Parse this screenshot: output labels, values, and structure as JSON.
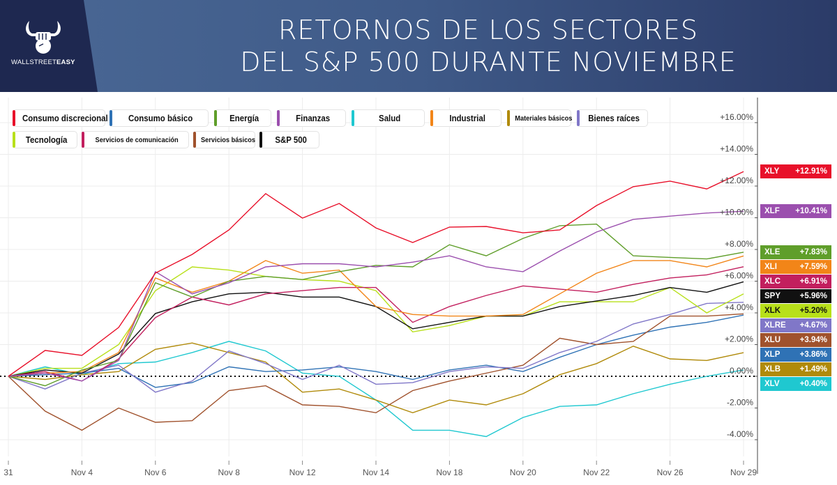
{
  "header": {
    "title_line1": "RETORNOS DE LOS SECTORES",
    "title_line2": "DEL S&P 500 DURANTE NOVIEMBRE",
    "logo_text_light": "WALLSTREET",
    "logo_text_bold": "EASY"
  },
  "legend": [
    {
      "label": "Consumo discrecional",
      "ticker": "XLY"
    },
    {
      "label": "Consumo básico",
      "ticker": "XLP"
    },
    {
      "label": "Energía",
      "ticker": "XLE"
    },
    {
      "label": "Finanzas",
      "ticker": "XLF"
    },
    {
      "label": "Salud",
      "ticker": "XLV"
    },
    {
      "label": "Industrial",
      "ticker": "XLI"
    },
    {
      "label": "Materiales básicos",
      "ticker": "XLB"
    },
    {
      "label": "Bienes raíces",
      "ticker": "XLRE"
    },
    {
      "label": "Tecnología",
      "ticker": "XLK"
    },
    {
      "label": "Servicios de comunicación",
      "ticker": "XLC"
    },
    {
      "label": "Servicios básicos",
      "ticker": "XLU"
    },
    {
      "label": "S&P 500",
      "ticker": "SPY"
    }
  ],
  "chart_data": {
    "type": "line",
    "x": [
      "31",
      "Nov 1",
      "Nov 4",
      "Nov 5",
      "Nov 6",
      "Nov 7",
      "Nov 8",
      "Nov 11",
      "Nov 12",
      "Nov 13",
      "Nov 14",
      "Nov 15",
      "Nov 18",
      "Nov 19",
      "Nov 20",
      "Nov 21",
      "Nov 22",
      "Nov 25",
      "Nov 26",
      "Nov 27",
      "Nov 29"
    ],
    "x_tick_labels": [
      "31",
      "Nov 4",
      "Nov 6",
      "Nov 8",
      "Nov 12",
      "Nov 14",
      "Nov 18",
      "Nov 20",
      "Nov 22",
      "Nov 26",
      "Nov 29"
    ],
    "y_tick_labels": [
      "-4.00%",
      "-2.00%",
      "0.00%",
      "+2.00%",
      "+4.00%",
      "+6.00%",
      "+8.00%",
      "+10.00%",
      "+12.00%",
      "+14.00%",
      "+16.00%"
    ],
    "y_ticks": [
      -4,
      -2,
      0,
      2,
      4,
      6,
      8,
      10,
      12,
      14,
      16
    ],
    "ylim": [
      -4.8,
      17
    ],
    "grid": true,
    "legend_position": "top-left",
    "zero_line": "dotted",
    "series": [
      {
        "ticker": "XLY",
        "name": "Consumo discrecional",
        "color": "#e8102a",
        "final": "+12.91%",
        "values": [
          0,
          1.63,
          1.32,
          3.08,
          6.51,
          7.69,
          9.23,
          11.52,
          9.98,
          10.9,
          9.36,
          8.44,
          9.41,
          9.45,
          9.05,
          9.23,
          10.77,
          11.96,
          12.31,
          11.82,
          12.91
        ]
      },
      {
        "ticker": "XLF",
        "name": "Finanzas",
        "color": "#9b4fae",
        "final": "+10.41%",
        "values": [
          0,
          0.2,
          -0.3,
          1.0,
          6.6,
          5.2,
          5.9,
          6.9,
          7.1,
          7.1,
          6.9,
          7.2,
          7.6,
          6.9,
          6.6,
          7.9,
          9.1,
          9.9,
          10.1,
          10.3,
          10.41
        ]
      },
      {
        "ticker": "XLE",
        "name": "Energía",
        "color": "#5f9e2a",
        "final": "+7.83%",
        "values": [
          0,
          -0.6,
          0.4,
          1.0,
          5.9,
          5.0,
          6.0,
          6.3,
          6.1,
          6.6,
          7.0,
          6.9,
          8.3,
          7.6,
          8.7,
          9.5,
          9.6,
          7.6,
          7.5,
          7.4,
          7.83
        ]
      },
      {
        "ticker": "XLI",
        "name": "Industrial",
        "color": "#f28518",
        "final": "+7.59%",
        "values": [
          0,
          0.2,
          0.3,
          1.5,
          6.2,
          5.3,
          6.0,
          7.3,
          6.5,
          6.7,
          4.4,
          3.9,
          3.8,
          3.8,
          3.9,
          5.2,
          6.5,
          7.3,
          7.3,
          6.9,
          7.59
        ]
      },
      {
        "ticker": "XLC",
        "name": "Servicios de comunicación",
        "color": "#c21f5e",
        "final": "+6.91%",
        "values": [
          0,
          0.3,
          -0.3,
          1.1,
          3.7,
          5.0,
          4.5,
          5.2,
          5.4,
          5.6,
          5.6,
          3.4,
          4.4,
          5.1,
          5.7,
          5.5,
          5.3,
          5.8,
          6.2,
          6.4,
          6.91
        ]
      },
      {
        "ticker": "SPY",
        "name": "S&P 500",
        "color": "#111111",
        "final": "+5.96%",
        "values": [
          0,
          0.4,
          0.2,
          1.4,
          3.96,
          4.7,
          5.2,
          5.3,
          5.0,
          5.0,
          4.4,
          3.0,
          3.4,
          3.8,
          3.8,
          4.4,
          4.75,
          5.1,
          5.6,
          5.3,
          5.96
        ]
      },
      {
        "ticker": "XLK",
        "name": "Tecnología",
        "color": "#b8e01a",
        "final": "+5.20%",
        "values": [
          0,
          0.5,
          0.5,
          2.0,
          5.4,
          6.9,
          6.7,
          6.3,
          6.1,
          6.0,
          5.4,
          2.8,
          3.2,
          3.8,
          3.8,
          4.7,
          4.7,
          4.7,
          5.6,
          4.0,
          5.2
        ]
      },
      {
        "ticker": "XLRE",
        "name": "Bienes raíces",
        "color": "#8077c8",
        "final": "+4.67%",
        "values": [
          0,
          -0.8,
          0.2,
          0.7,
          -1.0,
          -0.3,
          1.6,
          0.8,
          -0.2,
          0.7,
          -0.5,
          -0.4,
          0.3,
          0.6,
          0.5,
          1.5,
          2.2,
          3.3,
          3.9,
          4.6,
          4.67
        ]
      },
      {
        "ticker": "XLU",
        "name": "Servicios básicos",
        "color": "#a0522d",
        "final": "+3.94%",
        "values": [
          0,
          -2.2,
          -3.4,
          -2.0,
          -2.9,
          -2.8,
          -0.9,
          -0.6,
          -1.8,
          -1.9,
          -2.3,
          -0.9,
          -0.3,
          0.2,
          0.7,
          2.4,
          2.0,
          2.2,
          3.8,
          3.8,
          3.94
        ]
      },
      {
        "ticker": "XLP",
        "name": "Consumo básico",
        "color": "#2f72b5",
        "final": "+3.86%",
        "values": [
          0,
          0.1,
          0.2,
          0.5,
          -0.7,
          -0.4,
          0.6,
          0.3,
          0.4,
          0.6,
          0.3,
          -0.2,
          0.4,
          0.7,
          0.3,
          1.2,
          2.0,
          2.6,
          3.1,
          3.4,
          3.86
        ]
      },
      {
        "ticker": "XLB",
        "name": "Materiales básicos",
        "color": "#b08a0a",
        "final": "+1.49%",
        "values": [
          0,
          -0.2,
          0.1,
          0.3,
          1.7,
          2.1,
          1.5,
          0.9,
          -1.0,
          -0.8,
          -1.5,
          -2.3,
          -1.5,
          -1.8,
          -1.1,
          0.1,
          0.8,
          1.9,
          1.1,
          1.0,
          1.49
        ]
      },
      {
        "ticker": "XLV",
        "name": "Salud",
        "color": "#1fc8d0",
        "final": "+0.40%",
        "values": [
          0,
          0.6,
          0.1,
          0.8,
          0.9,
          1.5,
          2.2,
          1.6,
          0.2,
          0.0,
          -1.5,
          -3.4,
          -3.4,
          -3.8,
          -2.6,
          -1.9,
          -1.8,
          -1.1,
          -0.5,
          0.0,
          0.4
        ]
      }
    ]
  }
}
